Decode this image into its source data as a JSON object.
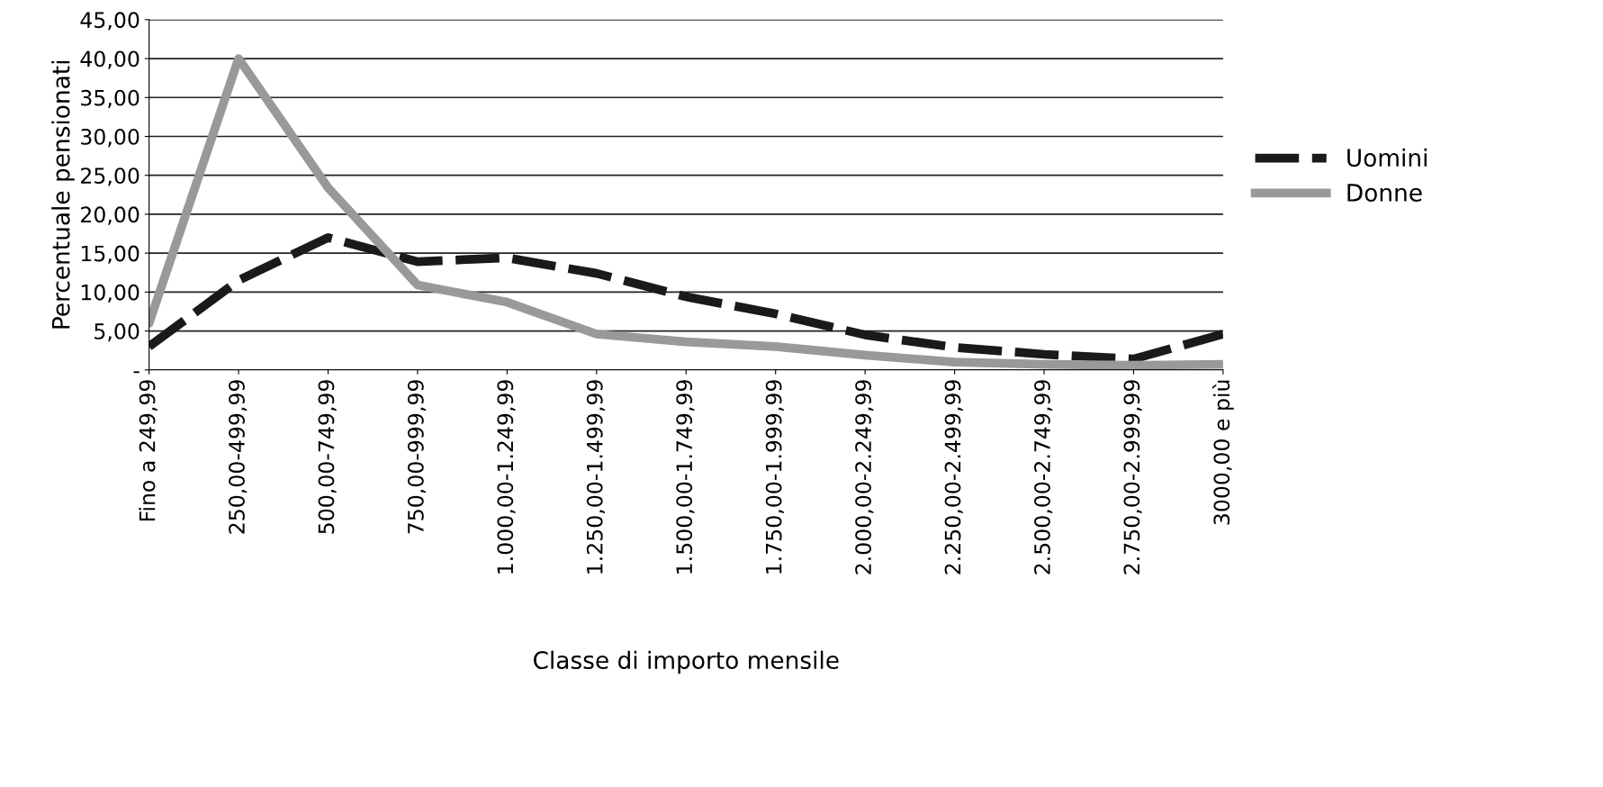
{
  "chart_data": {
    "type": "line",
    "xlabel": "Classe di importo mensile",
    "ylabel": "Percentuale pensionati",
    "categories": [
      "Fino a 249,99",
      "250,00-499,99",
      "500,00-749,99",
      "750,00-999,99",
      "1.000,00-1.249,99",
      "1.250,00-1.499,99",
      "1.500,00-1.749,99",
      "1.750,00-1.999,99",
      "2.000,00-2.249,99",
      "2.250,00-2.499,99",
      "2.500,00-2.749,99",
      "2.750,00-2.999,99",
      "3000,00 e più"
    ],
    "series": [
      {
        "name": "Uomini",
        "color": "#1a1a1a",
        "line_style": "dashed",
        "values": [
          3.0,
          11.5,
          17.0,
          13.9,
          14.4,
          12.4,
          9.4,
          7.2,
          4.5,
          2.9,
          2.0,
          1.4,
          4.6
        ]
      },
      {
        "name": "Donne",
        "color": "#999999",
        "line_style": "solid",
        "values": [
          6.0,
          40.0,
          23.4,
          10.9,
          8.7,
          4.6,
          3.6,
          3.0,
          1.9,
          1.0,
          0.7,
          0.6,
          0.7
        ]
      }
    ],
    "ylim": [
      0,
      45
    ],
    "yticks": [
      {
        "value": 0,
        "label": "-"
      },
      {
        "value": 5,
        "label": "5,00"
      },
      {
        "value": 10,
        "label": "10,00"
      },
      {
        "value": 15,
        "label": "15,00"
      },
      {
        "value": 20,
        "label": "20,00"
      },
      {
        "value": 25,
        "label": "25,00"
      },
      {
        "value": 30,
        "label": "30,00"
      },
      {
        "value": 35,
        "label": "35,00"
      },
      {
        "value": 40,
        "label": "40,00"
      },
      {
        "value": 45,
        "label": "45,00"
      }
    ],
    "grid": "y",
    "legend": "right",
    "marker": "none"
  }
}
